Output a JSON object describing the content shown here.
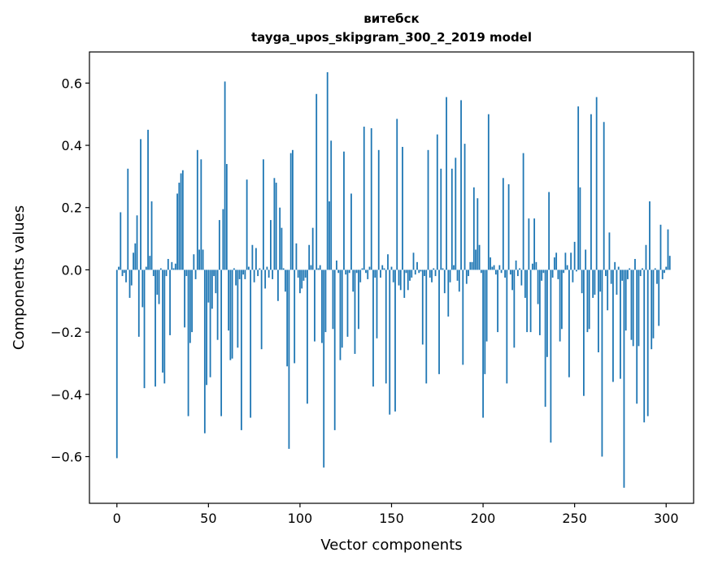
{
  "chart_data": {
    "type": "bar",
    "title": "витебск",
    "subtitle": "tayga_upos_skipgram_300_2_2019 model",
    "xlabel": "Vector components",
    "ylabel": "Components values",
    "xlim": [
      -15,
      315
    ],
    "ylim": [
      -0.75,
      0.7
    ],
    "xticks": [
      0,
      50,
      100,
      150,
      200,
      250,
      300
    ],
    "xtick_labels": [
      "0",
      "50",
      "100",
      "150",
      "200",
      "250",
      "300"
    ],
    "yticks": [
      -0.6,
      -0.4,
      -0.2,
      0.0,
      0.2,
      0.4,
      0.6
    ],
    "ytick_labels": [
      "−0.6",
      "−0.4",
      "−0.2",
      "0.0",
      "0.2",
      "0.4",
      "0.6"
    ],
    "bar_color": "#1f77b4",
    "values": [
      -0.605,
      0.01,
      0.185,
      -0.02,
      -0.01,
      -0.04,
      0.325,
      -0.09,
      -0.05,
      0.055,
      0.085,
      0.175,
      -0.215,
      0.42,
      -0.12,
      -0.38,
      0.01,
      0.45,
      0.045,
      0.22,
      -0.02,
      -0.375,
      -0.08,
      -0.11,
      0.005,
      -0.33,
      -0.365,
      -0.02,
      0.035,
      -0.21,
      0.025,
      0.005,
      0.02,
      0.245,
      0.28,
      0.31,
      0.32,
      -0.185,
      -0.02,
      -0.47,
      -0.235,
      -0.2,
      0.05,
      -0.03,
      0.385,
      0.065,
      0.355,
      0.065,
      -0.525,
      -0.37,
      -0.105,
      -0.345,
      -0.125,
      -0.02,
      -0.075,
      -0.225,
      0.16,
      -0.47,
      0.195,
      0.605,
      0.34,
      -0.195,
      -0.29,
      -0.285,
      0.005,
      -0.05,
      -0.25,
      -0.03,
      -0.515,
      -0.015,
      -0.03,
      0.29,
      0.01,
      -0.475,
      0.08,
      -0.04,
      0.07,
      -0.02,
      0.005,
      -0.255,
      0.355,
      -0.06,
      0.01,
      -0.025,
      0.16,
      -0.03,
      0.295,
      0.28,
      -0.1,
      0.2,
      0.135,
      0.005,
      -0.07,
      -0.31,
      -0.575,
      0.375,
      0.385,
      -0.3,
      0.085,
      -0.025,
      -0.075,
      -0.06,
      -0.035,
      -0.025,
      -0.43,
      0.08,
      0.015,
      0.135,
      -0.23,
      0.565,
      0.005,
      0.015,
      -0.235,
      -0.635,
      -0.2,
      0.635,
      0.22,
      0.415,
      -0.19,
      -0.515,
      0.03,
      -0.01,
      -0.29,
      -0.25,
      0.38,
      -0.015,
      -0.215,
      -0.01,
      0.245,
      -0.07,
      -0.27,
      -0.01,
      -0.19,
      -0.04,
      0.005,
      0.46,
      -0.01,
      -0.03,
      0.01,
      0.455,
      -0.375,
      -0.025,
      -0.22,
      0.385,
      -0.025,
      0.015,
      0.005,
      -0.365,
      0.05,
      -0.465,
      0.01,
      -0.04,
      -0.455,
      0.485,
      -0.05,
      -0.065,
      0.395,
      -0.09,
      -0.01,
      -0.065,
      -0.035,
      -0.025,
      0.055,
      -0.015,
      0.025,
      -0.01,
      -0.005,
      -0.24,
      -0.02,
      -0.365,
      0.385,
      -0.025,
      -0.04,
      0.005,
      -0.02,
      0.435,
      -0.335,
      0.325,
      0.005,
      -0.075,
      0.555,
      -0.15,
      -0.04,
      0.325,
      0.015,
      0.36,
      -0.035,
      -0.07,
      0.545,
      -0.305,
      0.405,
      -0.045,
      -0.02,
      0.025,
      0.025,
      0.265,
      0.065,
      0.23,
      0.08,
      -0.01,
      -0.475,
      -0.335,
      -0.23,
      0.5,
      0.04,
      0.01,
      0.015,
      -0.015,
      -0.2,
      0.015,
      -0.01,
      0.295,
      -0.025,
      -0.365,
      0.275,
      -0.015,
      -0.065,
      -0.25,
      0.03,
      -0.02,
      0.005,
      -0.05,
      0.375,
      -0.09,
      -0.2,
      0.165,
      -0.2,
      0.02,
      0.165,
      0.025,
      -0.11,
      -0.21,
      -0.035,
      -0.01,
      -0.44,
      -0.28,
      0.25,
      -0.555,
      -0.025,
      0.04,
      0.055,
      -0.03,
      -0.23,
      -0.19,
      -0.01,
      0.055,
      0.015,
      -0.345,
      0.055,
      -0.04,
      0.09,
      -0.005,
      0.525,
      0.265,
      -0.075,
      -0.405,
      0.065,
      -0.2,
      -0.19,
      0.5,
      -0.09,
      -0.08,
      0.555,
      -0.265,
      -0.07,
      -0.6,
      0.475,
      -0.02,
      -0.13,
      0.12,
      -0.045,
      -0.36,
      0.025,
      -0.08,
      0.01,
      -0.35,
      -0.035,
      -0.7,
      -0.195,
      -0.03,
      0.005,
      -0.225,
      -0.245,
      0.035,
      -0.43,
      -0.245,
      -0.02,
      0.005,
      -0.49,
      0.08,
      -0.47,
      0.22,
      -0.255,
      -0.22,
      0.005,
      -0.045,
      -0.18,
      0.145,
      -0.03,
      -0.01,
      0.01,
      0.13,
      0.045
    ]
  }
}
